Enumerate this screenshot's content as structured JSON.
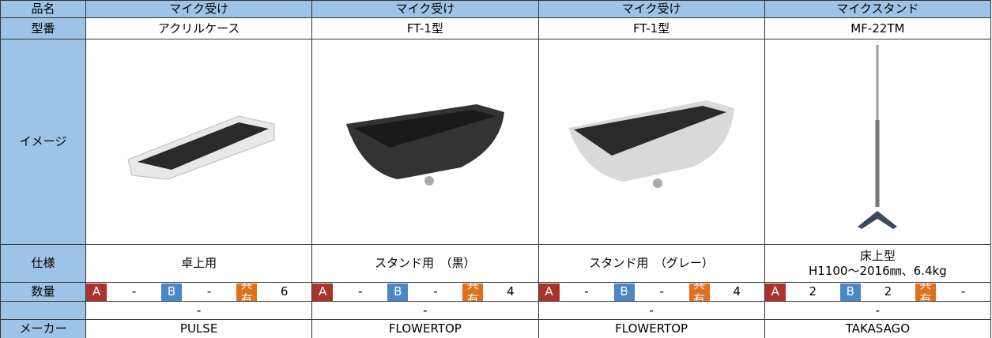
{
  "table": {
    "header": [
      "品名",
      "マイク受け",
      "マイク受け",
      "マイク受け",
      "マイクスタンド"
    ],
    "model": [
      "型番",
      "アクリルケース",
      "FT-1型",
      "FT-1型",
      "MF-22TM"
    ],
    "image_label": "イメージ",
    "spec_label": "仕様",
    "spec": [
      [
        "卓上用"
      ],
      [
        "スタンド用　（黒）"
      ],
      [
        "スタンド用　（グレー）"
      ],
      [
        "床上型",
        "H1100～2016㎜、6.4kg"
      ]
    ],
    "quantity_label": "数量",
    "quantity_keys": [
      "A",
      "B",
      "共有"
    ],
    "quantities": [
      [
        "-",
        "-",
        6
      ],
      [
        "-",
        "-",
        4
      ],
      [
        "-",
        "-",
        4
      ],
      [
        2,
        2,
        "-"
      ]
    ],
    "notes": [
      "-",
      "-",
      "-",
      "-"
    ],
    "maker_label": "メーカー",
    "makers": [
      "PULSE",
      "FLOWERTOP",
      "FLOWERTOP",
      "TAKASAGO"
    ]
  }
}
